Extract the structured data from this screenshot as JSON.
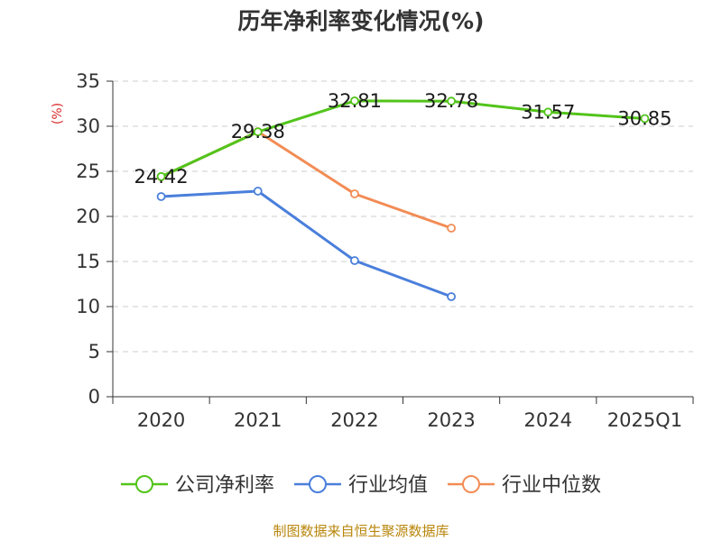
{
  "chart_data": {
    "type": "line",
    "title": "历年净利率变化情况(%)",
    "ylabel": "(%)",
    "xlabel": "",
    "ylim": [
      0,
      35
    ],
    "yticks": [
      0,
      5,
      10,
      15,
      20,
      25,
      30,
      35
    ],
    "categories": [
      "2020",
      "2021",
      "2022",
      "2023",
      "2024",
      "2025Q1"
    ],
    "grid": true,
    "legend_position": "bottom",
    "series": [
      {
        "name": "公司净利率",
        "color": "#52c41a",
        "values": [
          24.42,
          29.38,
          32.81,
          32.78,
          31.57,
          30.85
        ],
        "labels": [
          "24.42",
          "29.38",
          "32.81",
          "32.78",
          "31.57",
          "30.85"
        ]
      },
      {
        "name": "行业均值",
        "color": "#4a7fdb",
        "values": [
          22.2,
          22.8,
          15.1,
          11.1,
          null,
          null
        ]
      },
      {
        "name": "行业中位数",
        "color": "#f28c55",
        "values": [
          24.4,
          29.4,
          22.5,
          18.7,
          null,
          null
        ]
      }
    ]
  },
  "footer": {
    "source": "制图数据来自恒生聚源数据库"
  }
}
